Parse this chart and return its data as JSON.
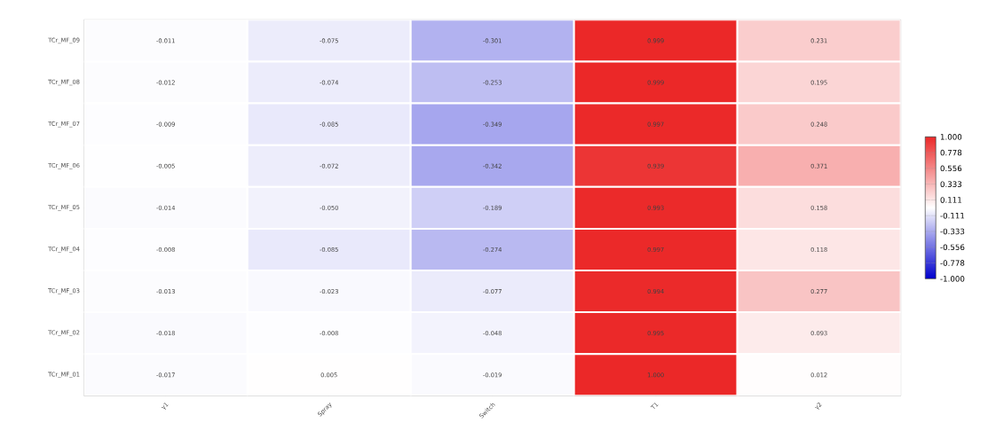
{
  "chart_data": {
    "type": "heatmap",
    "categories": [
      "γ1",
      "Spray",
      "Switch",
      "T1",
      "γ2"
    ],
    "y_categories": [
      "TCr_MF_09",
      "TCr_MF_08",
      "TCr_MF_07",
      "TCr_MF_06",
      "TCr_MF_05",
      "TCr_MF_04",
      "TCr_MF_03",
      "TCr_MF_02",
      "TCr_MF_01"
    ],
    "cells": [
      [
        -0.011,
        -0.075,
        -0.301,
        0.999,
        0.231
      ],
      [
        -0.012,
        -0.074,
        -0.253,
        0.999,
        0.195
      ],
      [
        -0.009,
        -0.085,
        -0.349,
        0.997,
        0.248
      ],
      [
        -0.005,
        -0.072,
        -0.342,
        0.939,
        0.371
      ],
      [
        -0.014,
        -0.05,
        -0.189,
        0.993,
        0.158
      ],
      [
        -0.008,
        -0.085,
        -0.274,
        0.997,
        0.118
      ],
      [
        -0.013,
        -0.023,
        -0.077,
        0.994,
        0.277
      ],
      [
        -0.018,
        -0.008,
        -0.048,
        0.995,
        0.093
      ],
      [
        -0.017,
        0.005,
        -0.019,
        1.0,
        0.012
      ]
    ],
    "cell_labels": [
      [
        "-0.011",
        "-0.075",
        "-0.301",
        "0.999",
        "0.231"
      ],
      [
        "-0.012",
        "-0.074",
        "-0.253",
        "0.999",
        "0.195"
      ],
      [
        "-0.009",
        "-0.085",
        "-0.349",
        "0.997",
        "0.248"
      ],
      [
        "-0.005",
        "-0.072",
        "-0.342",
        "0.939",
        "0.371"
      ],
      [
        "-0.014",
        "-0.050",
        "-0.189",
        "0.993",
        "0.158"
      ],
      [
        "-0.008",
        "-0.085",
        "-0.274",
        "0.997",
        "0.118"
      ],
      [
        "-0.013",
        "-0.023",
        "-0.077",
        "0.994",
        "0.277"
      ],
      [
        "-0.018",
        "-0.008",
        "-0.048",
        "0.995",
        "0.093"
      ],
      [
        "-0.017",
        "0.005",
        "-0.019",
        "1.000",
        "0.012"
      ]
    ],
    "clim": [
      -1,
      1
    ],
    "cticks": [
      {
        "value": 1,
        "label": "1.000"
      },
      {
        "value": 0.778,
        "label": "0.778"
      },
      {
        "value": 0.556,
        "label": "0.556"
      },
      {
        "value": 0.333,
        "label": "0.333"
      },
      {
        "value": 0.111,
        "label": "0.111"
      },
      {
        "value": -0.111,
        "label": "-0.111"
      },
      {
        "value": -0.333,
        "label": "-0.333"
      },
      {
        "value": -0.556,
        "label": "-0.556"
      },
      {
        "value": -0.778,
        "label": "-0.778"
      },
      {
        "value": -1,
        "label": "-1.000"
      }
    ]
  }
}
